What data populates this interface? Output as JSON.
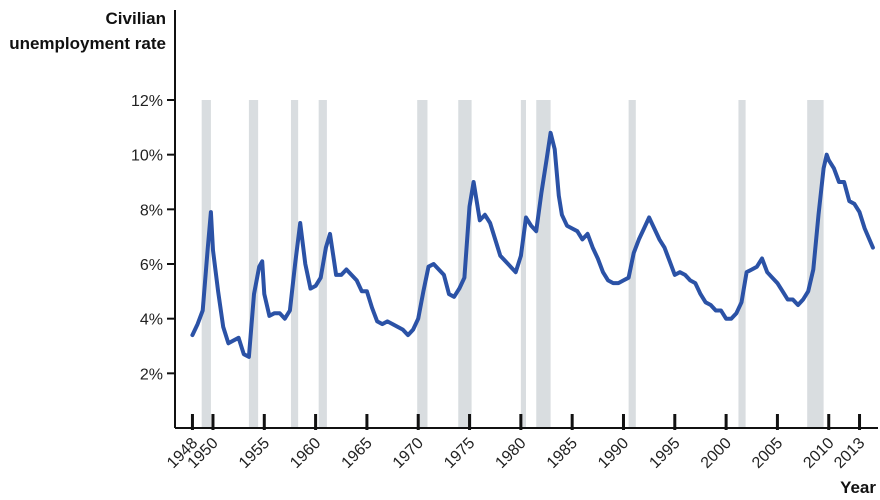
{
  "chart_data": {
    "type": "line",
    "ylabel": "Civilian unemployment rate",
    "xlabel": "Year",
    "color": "#2b52a6",
    "recession_color": "#d9dde0",
    "xlim": [
      1946.3,
      2014.8
    ],
    "ylim": [
      0,
      12
    ],
    "xticks": [
      1948,
      1950,
      1955,
      1960,
      1965,
      1970,
      1975,
      1980,
      1985,
      1990,
      1995,
      2000,
      2005,
      2010,
      2013
    ],
    "yticks": [
      {
        "value": 2,
        "label": "2%"
      },
      {
        "value": 4,
        "label": "4%"
      },
      {
        "value": 6,
        "label": "6%"
      },
      {
        "value": 8,
        "label": "8%"
      },
      {
        "value": 10,
        "label": "10%"
      },
      {
        "value": 12,
        "label": "12%"
      }
    ],
    "grid": false,
    "recessions": [
      [
        1948.9,
        1949.8
      ],
      [
        1953.5,
        1954.4
      ],
      [
        1957.6,
        1958.3
      ],
      [
        1960.3,
        1961.1
      ],
      [
        1969.9,
        1970.9
      ],
      [
        1973.9,
        1975.2
      ],
      [
        1980.0,
        1980.5
      ],
      [
        1981.5,
        1982.9
      ],
      [
        1990.5,
        1991.2
      ],
      [
        2001.2,
        2001.9
      ],
      [
        2007.9,
        2009.5
      ]
    ],
    "x": [
      1948.0,
      1948.5,
      1949.0,
      1949.5,
      1949.8,
      1950.0,
      1950.5,
      1951.0,
      1951.5,
      1952.0,
      1952.5,
      1953.0,
      1953.5,
      1954.0,
      1954.5,
      1954.8,
      1955.0,
      1955.5,
      1956.0,
      1956.5,
      1957.0,
      1957.5,
      1958.0,
      1958.5,
      1959.0,
      1959.5,
      1960.0,
      1960.5,
      1961.0,
      1961.4,
      1961.8,
      1962.0,
      1962.5,
      1963.0,
      1963.5,
      1964.0,
      1964.5,
      1965.0,
      1965.5,
      1966.0,
      1966.5,
      1967.0,
      1967.5,
      1968.0,
      1968.5,
      1969.0,
      1969.5,
      1970.0,
      1970.5,
      1971.0,
      1971.5,
      1972.0,
      1972.5,
      1973.0,
      1973.5,
      1974.0,
      1974.5,
      1975.0,
      1975.4,
      1976.0,
      1976.5,
      1977.0,
      1977.5,
      1978.0,
      1978.5,
      1979.0,
      1979.5,
      1980.0,
      1980.5,
      1981.0,
      1981.5,
      1982.0,
      1982.5,
      1982.9,
      1983.3,
      1983.7,
      1984.0,
      1984.5,
      1985.0,
      1985.5,
      1986.0,
      1986.5,
      1987.0,
      1987.5,
      1988.0,
      1988.5,
      1989.0,
      1989.5,
      1990.0,
      1990.5,
      1991.0,
      1991.5,
      1992.0,
      1992.5,
      1993.0,
      1993.5,
      1994.0,
      1994.5,
      1995.0,
      1995.5,
      1996.0,
      1996.5,
      1997.0,
      1997.5,
      1998.0,
      1998.5,
      1999.0,
      1999.5,
      2000.0,
      2000.5,
      2001.0,
      2001.5,
      2002.0,
      2002.5,
      2003.0,
      2003.5,
      2004.0,
      2004.5,
      2005.0,
      2005.5,
      2006.0,
      2006.5,
      2007.0,
      2007.5,
      2008.0,
      2008.5,
      2009.0,
      2009.5,
      2009.8,
      2010.0,
      2010.5,
      2011.0,
      2011.5,
      2012.0,
      2012.5,
      2013.0,
      2013.5,
      2014.3
    ],
    "values": [
      3.4,
      3.8,
      4.3,
      6.6,
      7.9,
      6.5,
      5.0,
      3.7,
      3.1,
      3.2,
      3.3,
      2.7,
      2.6,
      4.9,
      5.9,
      6.1,
      4.9,
      4.1,
      4.2,
      4.2,
      4.0,
      4.3,
      6.0,
      7.5,
      6.0,
      5.1,
      5.2,
      5.5,
      6.6,
      7.1,
      6.1,
      5.6,
      5.6,
      5.8,
      5.6,
      5.4,
      5.0,
      5.0,
      4.4,
      3.9,
      3.8,
      3.9,
      3.8,
      3.7,
      3.6,
      3.4,
      3.6,
      4.0,
      5.0,
      5.9,
      6.0,
      5.8,
      5.6,
      4.9,
      4.8,
      5.1,
      5.5,
      8.1,
      9.0,
      7.6,
      7.8,
      7.5,
      6.9,
      6.3,
      6.1,
      5.9,
      5.7,
      6.3,
      7.7,
      7.4,
      7.2,
      8.6,
      9.8,
      10.8,
      10.2,
      8.5,
      7.8,
      7.4,
      7.3,
      7.2,
      6.9,
      7.1,
      6.6,
      6.2,
      5.7,
      5.4,
      5.3,
      5.3,
      5.4,
      5.5,
      6.4,
      6.9,
      7.3,
      7.7,
      7.3,
      6.9,
      6.6,
      6.1,
      5.6,
      5.7,
      5.6,
      5.4,
      5.3,
      4.9,
      4.6,
      4.5,
      4.3,
      4.3,
      4.0,
      4.0,
      4.2,
      4.6,
      5.7,
      5.8,
      5.9,
      6.2,
      5.7,
      5.5,
      5.3,
      5.0,
      4.7,
      4.7,
      4.5,
      4.7,
      5.0,
      5.8,
      7.8,
      9.5,
      10.0,
      9.8,
      9.5,
      9.0,
      9.0,
      8.3,
      8.2,
      7.9,
      7.3,
      6.6
    ]
  }
}
